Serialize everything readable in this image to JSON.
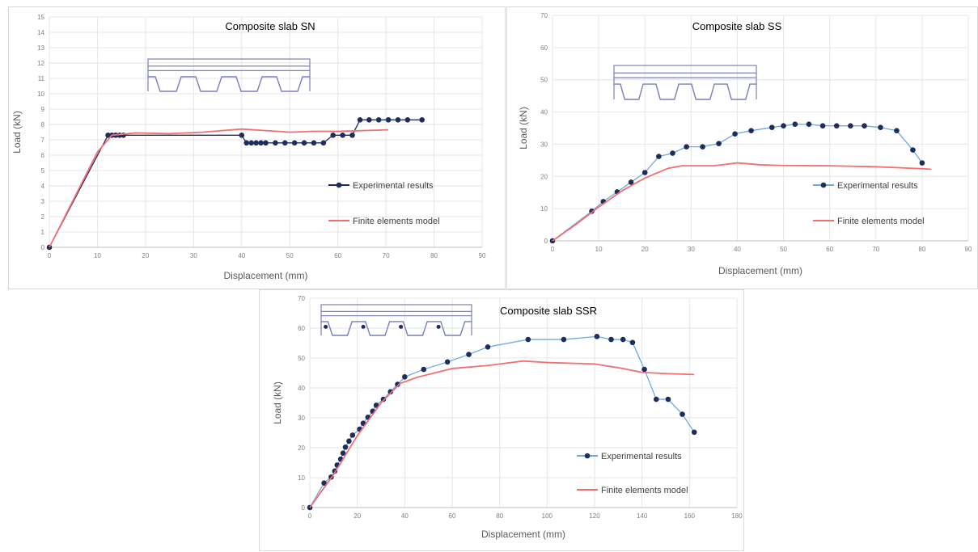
{
  "chart_data": [
    {
      "type": "line",
      "title": "Composite slab SN",
      "xlabel": "Displacement (mm)",
      "ylabel": "Load (kN)",
      "xlim": [
        0,
        90
      ],
      "ylim": [
        0,
        15
      ],
      "xticks": [
        0,
        10,
        20,
        30,
        40,
        50,
        60,
        70,
        80,
        90
      ],
      "yticks": [
        0,
        1,
        2,
        3,
        4,
        5,
        6,
        7,
        8,
        9,
        10,
        11,
        12,
        13,
        14,
        15
      ],
      "grid": true,
      "legend_position": "right",
      "series": [
        {
          "name": "Experimental results",
          "color": "#1f2d5c",
          "marker": "circle",
          "points": [
            [
              0,
              0
            ],
            [
              12.2,
              7.3
            ],
            [
              13,
              7.3
            ],
            [
              13.8,
              7.3
            ],
            [
              14.6,
              7.3
            ],
            [
              15.4,
              7.3
            ],
            [
              40,
              7.3
            ],
            [
              41,
              6.8
            ],
            [
              42,
              6.8
            ],
            [
              43,
              6.8
            ],
            [
              44,
              6.8
            ],
            [
              45,
              6.8
            ],
            [
              47,
              6.8
            ],
            [
              49,
              6.8
            ],
            [
              51,
              6.8
            ],
            [
              53,
              6.8
            ],
            [
              55,
              6.8
            ],
            [
              57,
              6.8
            ],
            [
              59,
              7.3
            ],
            [
              61,
              7.3
            ],
            [
              63,
              7.3
            ],
            [
              64.6,
              8.3
            ],
            [
              66.5,
              8.3
            ],
            [
              68.5,
              8.3
            ],
            [
              70.5,
              8.3
            ],
            [
              72.5,
              8.3
            ],
            [
              74.5,
              8.3
            ],
            [
              77.5,
              8.3
            ]
          ]
        },
        {
          "name": "Finite elements model",
          "color": "#f07070",
          "marker": "none",
          "points": [
            [
              0,
              0
            ],
            [
              5,
              3.1
            ],
            [
              10,
              6.2
            ],
            [
              13,
              7.3
            ],
            [
              18,
              7.45
            ],
            [
              25,
              7.4
            ],
            [
              32,
              7.5
            ],
            [
              40,
              7.7
            ],
            [
              45,
              7.6
            ],
            [
              50,
              7.5
            ],
            [
              55,
              7.55
            ],
            [
              60,
              7.55
            ],
            [
              65,
              7.6
            ],
            [
              70.5,
              7.65
            ]
          ]
        }
      ],
      "inset": "trapezoidal-deck-section"
    },
    {
      "type": "line",
      "title": "Composite slab SS",
      "xlabel": "Displacement (mm)",
      "ylabel": "Load (kN)",
      "xlim": [
        0,
        90
      ],
      "ylim": [
        0,
        70
      ],
      "xticks": [
        0,
        10,
        20,
        30,
        40,
        50,
        60,
        70,
        80,
        90
      ],
      "yticks": [
        0,
        10,
        20,
        30,
        40,
        50,
        60,
        70
      ],
      "grid": true,
      "legend_position": "right",
      "series": [
        {
          "name": "Experimental results",
          "color": "#1f2d5c",
          "line_color": "#6fa8dc",
          "marker": "circle",
          "points": [
            [
              0,
              0
            ],
            [
              8.5,
              9.2
            ],
            [
              11,
              12.2
            ],
            [
              14,
              15.2
            ],
            [
              17,
              18.2
            ],
            [
              20,
              21.2
            ],
            [
              23,
              26.2
            ],
            [
              26,
              27.2
            ],
            [
              29,
              29.2
            ],
            [
              32.5,
              29.2
            ],
            [
              36,
              30.2
            ],
            [
              39.5,
              33.2
            ],
            [
              43,
              34.2
            ],
            [
              47.5,
              35.2
            ],
            [
              50,
              35.7
            ],
            [
              52.5,
              36.2
            ],
            [
              55.5,
              36.2
            ],
            [
              58.5,
              35.7
            ],
            [
              61.5,
              35.7
            ],
            [
              64.5,
              35.7
            ],
            [
              67.5,
              35.7
            ],
            [
              71,
              35.2
            ],
            [
              74.5,
              34.2
            ],
            [
              78,
              28.2
            ],
            [
              80,
              24.2
            ]
          ]
        },
        {
          "name": "Finite elements model",
          "color": "#f07070",
          "marker": "none",
          "points": [
            [
              0,
              0
            ],
            [
              5,
              5
            ],
            [
              10,
              10.5
            ],
            [
              15,
              15.5
            ],
            [
              20,
              19.5
            ],
            [
              25,
              22.5
            ],
            [
              28,
              23.3
            ],
            [
              35,
              23.3
            ],
            [
              40,
              24.2
            ],
            [
              45,
              23.6
            ],
            [
              50,
              23.4
            ],
            [
              60,
              23.3
            ],
            [
              70,
              23
            ],
            [
              80,
              22.4
            ],
            [
              82,
              22.2
            ]
          ]
        }
      ],
      "inset": "trapezoidal-deck-section"
    },
    {
      "type": "line",
      "title": "Composite slab SSR",
      "xlabel": "Displacement (mm)",
      "ylabel": "Load (kN)",
      "xlim": [
        0,
        180
      ],
      "ylim": [
        0,
        70
      ],
      "xticks": [
        0,
        20,
        40,
        60,
        80,
        100,
        120,
        140,
        160,
        180
      ],
      "yticks": [
        0,
        10,
        20,
        30,
        40,
        50,
        60,
        70
      ],
      "grid": true,
      "legend_position": "right",
      "series": [
        {
          "name": "Experimental results",
          "color": "#1f2d5c",
          "line_color": "#6fa8dc",
          "marker": "circle",
          "points": [
            [
              0,
              0
            ],
            [
              6,
              8.2
            ],
            [
              9,
              10.2
            ],
            [
              10.5,
              12.2
            ],
            [
              11.5,
              14.2
            ],
            [
              13,
              16.2
            ],
            [
              14,
              18.2
            ],
            [
              15,
              20.2
            ],
            [
              16.5,
              22.2
            ],
            [
              18,
              24.2
            ],
            [
              21,
              26.2
            ],
            [
              22.5,
              28.2
            ],
            [
              24.5,
              30.2
            ],
            [
              26.5,
              32.2
            ],
            [
              28,
              34.2
            ],
            [
              31,
              36.2
            ],
            [
              34,
              38.7
            ],
            [
              37,
              41.2
            ],
            [
              40,
              43.7
            ],
            [
              48,
              46.2
            ],
            [
              58,
              48.7
            ],
            [
              67,
              51.2
            ],
            [
              75,
              53.7
            ],
            [
              92,
              56.2
            ],
            [
              107,
              56.2
            ],
            [
              121,
              57.2
            ],
            [
              127,
              56.2
            ],
            [
              132,
              56.2
            ],
            [
              136,
              55.2
            ],
            [
              141,
              46.2
            ],
            [
              146,
              36.2
            ],
            [
              151,
              36.2
            ],
            [
              157,
              31.2
            ],
            [
              162,
              25.2
            ]
          ]
        },
        {
          "name": "Finite elements model",
          "color": "#f07070",
          "marker": "none",
          "points": [
            [
              0,
              0
            ],
            [
              10,
              11
            ],
            [
              20,
              24
            ],
            [
              30,
              35
            ],
            [
              38,
              41.5
            ],
            [
              45,
              43.5
            ],
            [
              60,
              46.5
            ],
            [
              75,
              47.5
            ],
            [
              90,
              49
            ],
            [
              100,
              48.5
            ],
            [
              120,
              48
            ],
            [
              132,
              46.5
            ],
            [
              140,
              45.2
            ],
            [
              150,
              44.8
            ],
            [
              162,
              44.5
            ]
          ]
        }
      ],
      "inset": "trapezoidal-deck-section-with-rebars"
    }
  ]
}
